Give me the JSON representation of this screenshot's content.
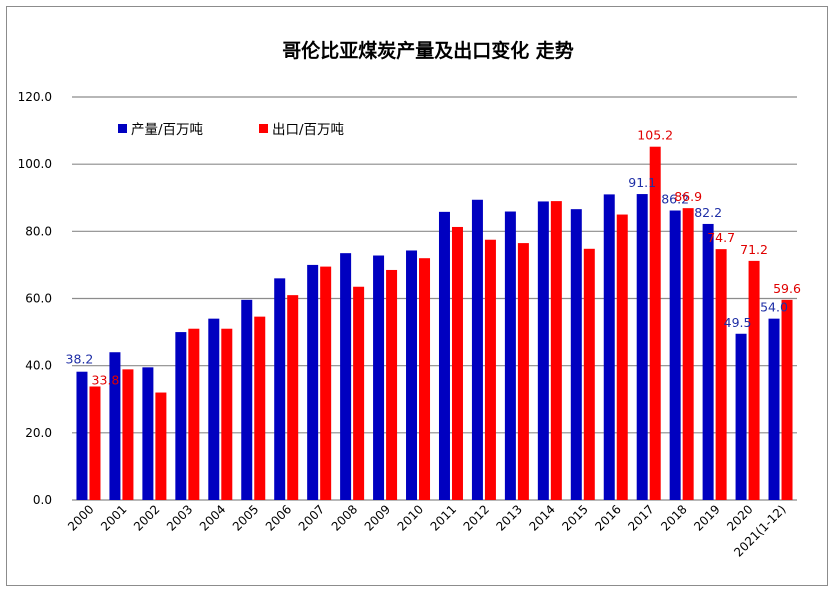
{
  "chart_data": {
    "type": "bar",
    "title": "哥伦比亚煤炭产量及出口变化 走势",
    "categories": [
      "2000",
      "2001",
      "2002",
      "2003",
      "2004",
      "2005",
      "2006",
      "2007",
      "2008",
      "2009",
      "2010",
      "2011",
      "2012",
      "2013",
      "2014",
      "2015",
      "2016",
      "2017",
      "2018",
      "2019",
      "2020",
      "2021(1-12)"
    ],
    "series": [
      {
        "name": "产量/百万吨",
        "color": "#0000c0",
        "label_color": "#1f2fa6",
        "values": [
          38.2,
          44.0,
          39.5,
          50.0,
          54.0,
          59.6,
          66.0,
          70.0,
          73.5,
          72.8,
          74.3,
          85.8,
          89.4,
          85.9,
          88.9,
          86.6,
          91.0,
          91.1,
          86.2,
          82.2,
          49.5,
          54.0
        ],
        "labels": {
          "0": "38.2",
          "17": "91.1",
          "18": "86.2",
          "19": "82.2",
          "20": "49.5",
          "21": "54.0"
        }
      },
      {
        "name": "出口/百万吨",
        "color": "#ff0000",
        "label_color": "#e00000",
        "values": [
          33.8,
          38.9,
          32.0,
          51.0,
          51.0,
          54.6,
          61.0,
          69.5,
          63.5,
          68.5,
          72.0,
          81.3,
          77.5,
          76.5,
          89.0,
          74.8,
          85.0,
          105.2,
          86.9,
          74.7,
          71.2,
          59.6
        ],
        "labels": {
          "0": "33.8",
          "17": "105.2",
          "18": "86.9",
          "19": "74.7",
          "20": "71.2",
          "21": "59.6"
        }
      }
    ],
    "ylim": [
      0,
      120
    ],
    "yticks": [
      "0.0",
      "20.0",
      "40.0",
      "60.0",
      "80.0",
      "100.0",
      "120.0"
    ],
    "grid": true,
    "legend_position": "top-left"
  }
}
